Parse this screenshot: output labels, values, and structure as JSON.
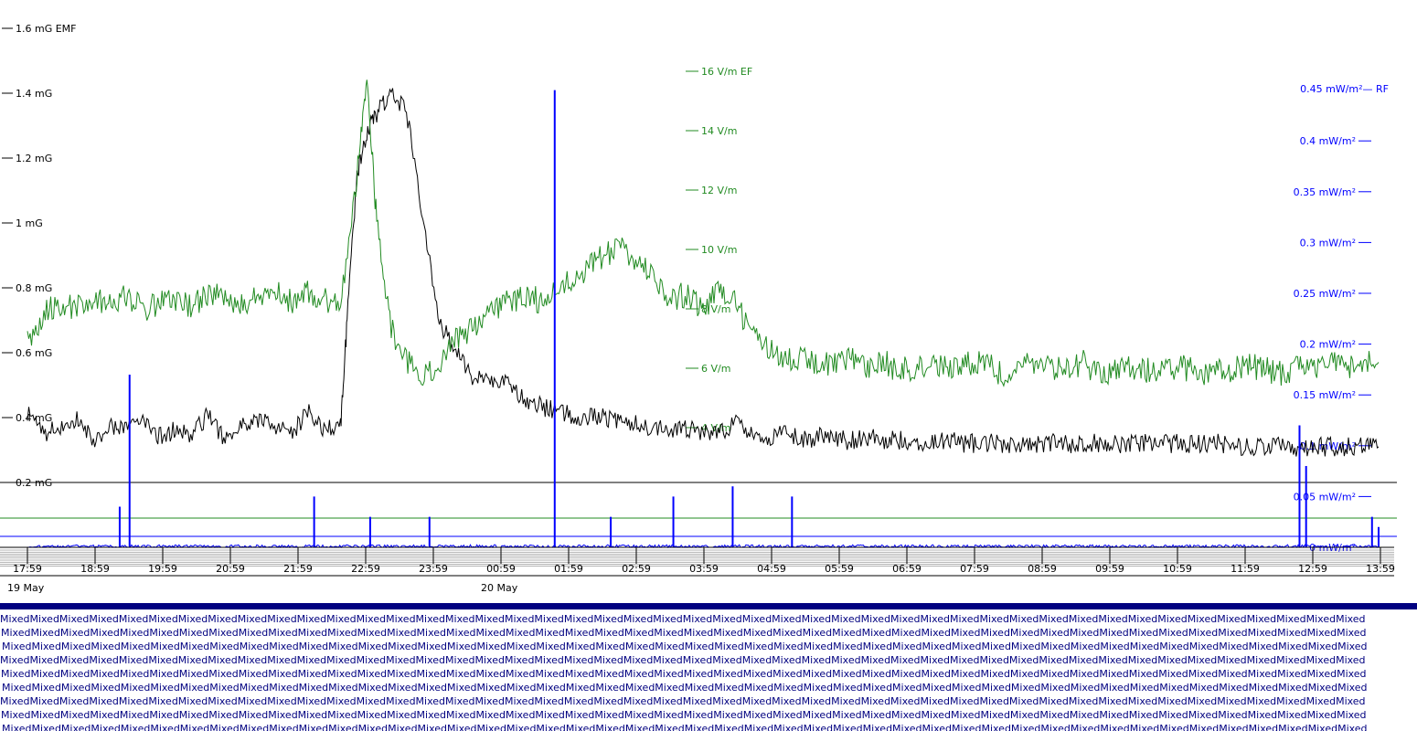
{
  "chart_data": {
    "type": "line",
    "title": "",
    "x_range": [
      "19 May 17:50",
      "20 May 13:50"
    ],
    "time_ticks": [
      "17:59",
      "18:59",
      "19:59",
      "20:59",
      "21:59",
      "22:59",
      "23:59",
      "00:59",
      "01:59",
      "02:59",
      "03:59",
      "04:59",
      "05:59",
      "06:59",
      "07:59",
      "08:59",
      "09:59",
      "10:59",
      "11:59",
      "12:59",
      "13:59"
    ],
    "date_labels": [
      "19 May",
      "20 May"
    ],
    "axes": {
      "emf": {
        "unit": "mG",
        "range": [
          0,
          1.6
        ],
        "ticks": [
          "1.6 mG EMF",
          "1.4 mG",
          "1.2 mG",
          "1 mG",
          "0.8 mG",
          "0.6 mG",
          "0.4 mG",
          "0.2 mG"
        ],
        "color": "#000000",
        "threshold_line": 0.2
      },
      "ef": {
        "unit": "V/m",
        "range": [
          0,
          16
        ],
        "ticks": [
          "16 V/m EF",
          "14 V/m",
          "12 V/m",
          "10 V/m",
          "8 V/m",
          "6 V/m",
          "4 V/m"
        ],
        "color": "#228B22",
        "threshold_line": 1.0
      },
      "rf": {
        "unit": "mW/m²",
        "range": [
          0,
          0.45
        ],
        "ticks": [
          "0.45 mW/m²— RF",
          "0.4 mW/m²",
          "0.35 mW/m²",
          "0.3 mW/m²",
          "0.25 mW/m²",
          "0.2 mW/m²",
          "0.15 mW/m²",
          "0.1 mW/m²",
          "0.05 mW/m²",
          "0 mW/m²"
        ],
        "color": "#0000FF",
        "threshold_line": 0.01
      }
    },
    "series": [
      {
        "name": "EMF",
        "axis": "emf",
        "color": "#000000",
        "t": [
          0,
          0.25,
          0.5,
          0.75,
          1.0,
          1.25,
          1.5,
          1.75,
          2.0,
          2.25,
          2.5,
          2.75,
          3.0,
          3.25,
          3.5,
          3.75,
          4.0,
          4.25,
          4.5,
          4.75,
          4.85,
          5.0,
          5.15,
          5.3,
          5.5,
          5.75,
          6.0,
          6.25,
          6.5,
          6.75,
          7.0,
          7.25,
          7.5,
          7.75,
          8.0,
          8.25,
          8.5,
          8.75,
          9.0,
          9.25,
          9.5,
          9.75,
          10.0,
          10.25,
          10.5,
          10.75,
          11.0,
          11.25,
          11.5,
          11.75,
          12.0,
          12.25,
          12.5,
          12.75,
          13.0,
          13.25,
          13.5,
          13.75,
          14.0,
          14.25,
          14.5,
          14.75,
          15.0,
          15.25,
          15.5,
          15.75,
          16.0,
          16.25,
          16.5,
          16.75,
          17.0,
          17.25,
          17.5,
          17.75,
          18.0,
          18.25,
          18.5,
          18.75,
          19.0,
          19.25,
          19.5,
          19.75,
          20.0,
          20.25,
          20.5
        ],
        "v": [
          0.42,
          0.35,
          0.37,
          0.39,
          0.33,
          0.38,
          0.36,
          0.4,
          0.34,
          0.36,
          0.35,
          0.41,
          0.33,
          0.37,
          0.39,
          0.38,
          0.35,
          0.42,
          0.36,
          0.37,
          0.7,
          1.15,
          1.28,
          1.34,
          1.4,
          1.35,
          1.0,
          0.7,
          0.6,
          0.53,
          0.52,
          0.51,
          0.46,
          0.44,
          0.42,
          0.41,
          0.4,
          0.4,
          0.39,
          0.38,
          0.37,
          0.37,
          0.36,
          0.36,
          0.35,
          0.38,
          0.34,
          0.34,
          0.35,
          0.33,
          0.34,
          0.33,
          0.33,
          0.34,
          0.33,
          0.33,
          0.32,
          0.32,
          0.33,
          0.32,
          0.32,
          0.32,
          0.32,
          0.32,
          0.32,
          0.32,
          0.32,
          0.32,
          0.32,
          0.32,
          0.32,
          0.32,
          0.32,
          0.32,
          0.32,
          0.32,
          0.31,
          0.31,
          0.31,
          0.31,
          0.31,
          0.31,
          0.31,
          0.31,
          0.31
        ]
      },
      {
        "name": "EF",
        "axis": "ef",
        "color": "#228B22",
        "t": [
          0,
          0.25,
          0.5,
          0.75,
          1.0,
          1.25,
          1.5,
          1.75,
          2.0,
          2.25,
          2.5,
          2.75,
          3.0,
          3.25,
          3.5,
          3.75,
          4.0,
          4.25,
          4.5,
          4.75,
          5.0,
          5.15,
          5.3,
          5.5,
          5.75,
          6.0,
          6.25,
          6.5,
          6.75,
          7.0,
          7.25,
          7.5,
          7.75,
          8.0,
          8.25,
          8.5,
          8.75,
          9.0,
          9.25,
          9.5,
          9.75,
          10.0,
          10.25,
          10.5,
          10.75,
          11.0,
          11.25,
          11.5,
          11.75,
          12.0,
          12.25,
          12.5,
          12.75,
          13.0,
          13.25,
          13.5,
          13.75,
          14.0,
          14.25,
          14.5,
          14.75,
          15.0,
          15.25,
          15.5,
          15.75,
          16.0,
          16.25,
          16.5,
          16.75,
          17.0,
          17.25,
          17.5,
          17.75,
          18.0,
          18.25,
          18.5,
          18.75,
          19.0,
          19.25,
          19.5,
          19.75,
          20.0,
          20.25,
          20.5
        ],
        "v": [
          7.0,
          7.8,
          8.2,
          8.0,
          8.3,
          8.1,
          8.4,
          8.0,
          8.2,
          8.3,
          8.1,
          8.5,
          8.3,
          8.2,
          8.4,
          8.6,
          8.2,
          8.5,
          8.3,
          8.1,
          12.5,
          15.5,
          11.0,
          7.5,
          6.2,
          5.8,
          6.0,
          7.0,
          7.4,
          8.0,
          8.2,
          8.4,
          8.3,
          8.6,
          9.0,
          9.4,
          9.8,
          10.0,
          9.5,
          9.2,
          8.3,
          8.5,
          8.0,
          8.6,
          8.2,
          7.0,
          6.6,
          6.3,
          6.4,
          6.2,
          6.1,
          6.3,
          6.0,
          6.2,
          5.9,
          6.1,
          6.2,
          6.0,
          6.1,
          6.3,
          5.8,
          6.0,
          6.1,
          6.0,
          5.9,
          6.2,
          5.8,
          6.0,
          6.1,
          5.9,
          6.0,
          6.1,
          5.8,
          6.0,
          5.9,
          6.1,
          6.0,
          5.8,
          6.0,
          5.9,
          6.2,
          6.0,
          6.3,
          6.1,
          6.2
        ]
      },
      {
        "name": "RF",
        "axis": "rf",
        "color": "#0000FF",
        "baseline": 0.0,
        "spikes": [
          {
            "t": 1.4,
            "v": 0.04
          },
          {
            "t": 1.55,
            "v": 0.17
          },
          {
            "t": 4.35,
            "v": 0.05
          },
          {
            "t": 5.2,
            "v": 0.03
          },
          {
            "t": 6.1,
            "v": 0.03
          },
          {
            "t": 8.0,
            "v": 0.45
          },
          {
            "t": 8.85,
            "v": 0.03
          },
          {
            "t": 9.8,
            "v": 0.05
          },
          {
            "t": 10.7,
            "v": 0.06
          },
          {
            "t": 11.6,
            "v": 0.05
          },
          {
            "t": 19.3,
            "v": 0.12
          },
          {
            "t": 19.4,
            "v": 0.08
          },
          {
            "t": 20.4,
            "v": 0.03
          },
          {
            "t": 20.5,
            "v": 0.02
          }
        ]
      }
    ],
    "grid": false,
    "legend": "none"
  },
  "status_strip": {
    "label": "Mixed",
    "rows": 9
  }
}
